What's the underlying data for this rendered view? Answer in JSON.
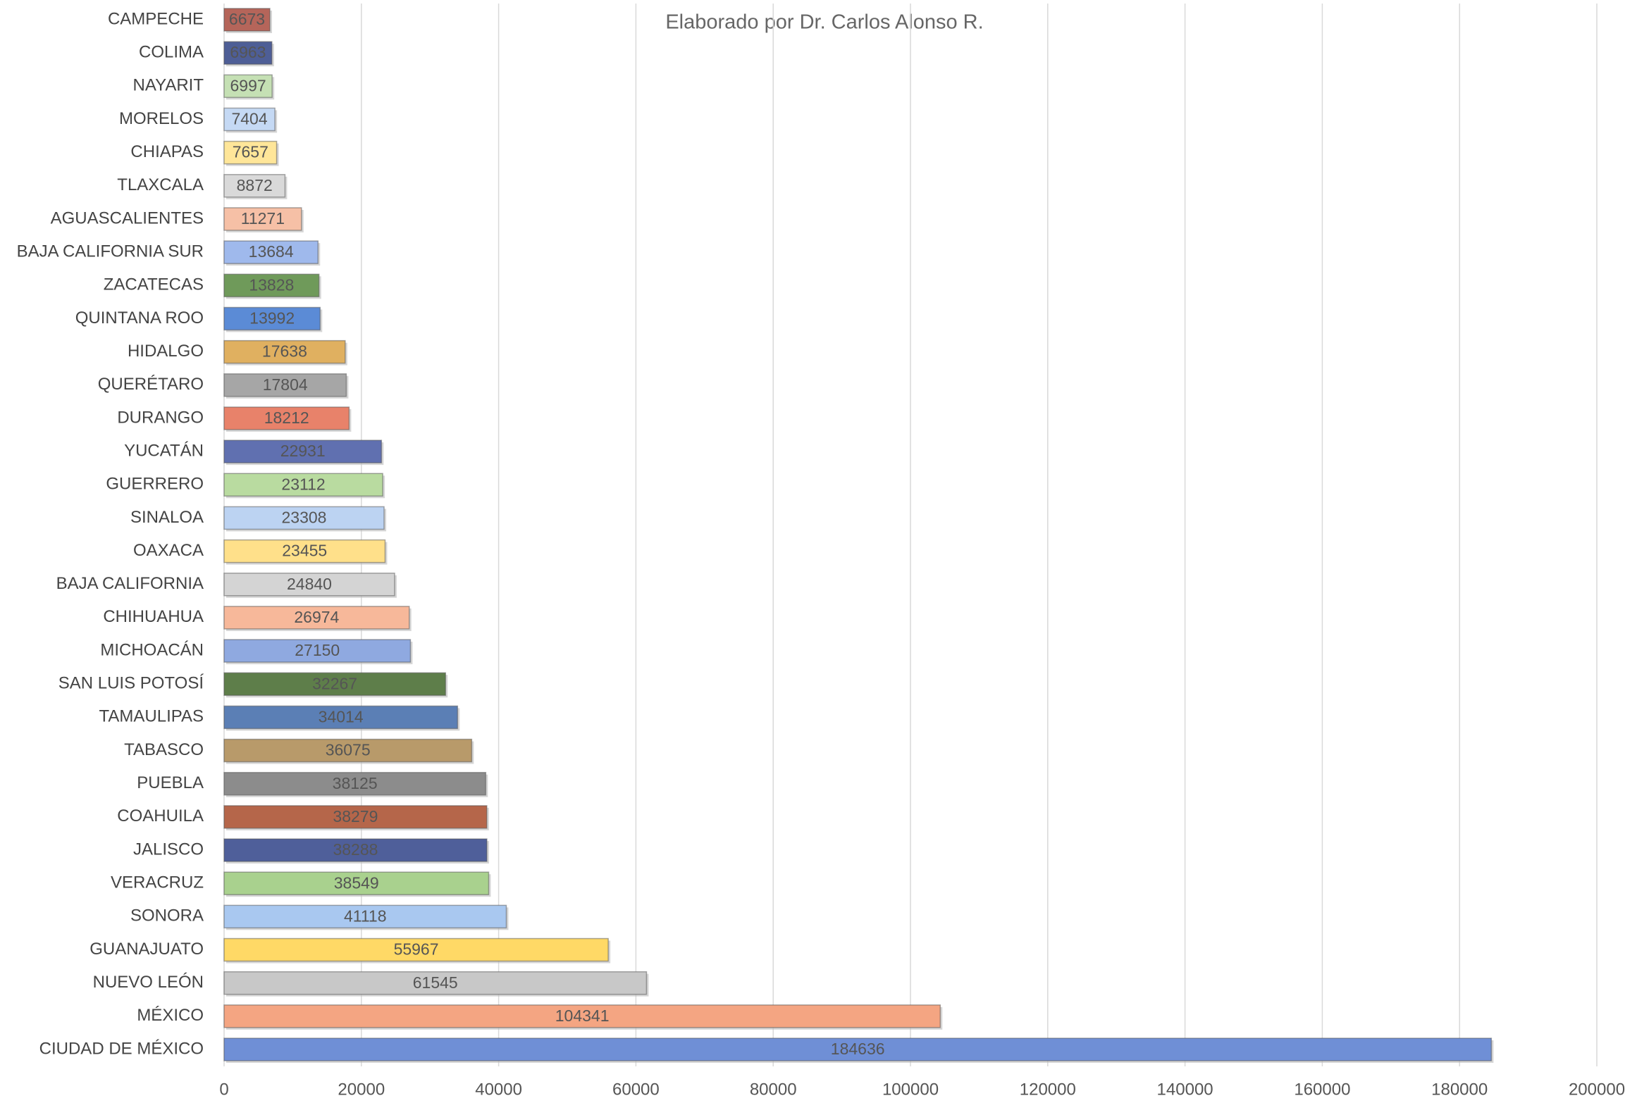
{
  "chart_data": {
    "type": "bar",
    "orientation": "horizontal",
    "subtitle": "Elaborado por Dr. Carlos Alonso R.",
    "categories": [
      "CAMPECHE",
      "COLIMA",
      "NAYARIT",
      "MORELOS",
      "CHIAPAS",
      "TLAXCALA",
      "AGUASCALIENTES",
      "BAJA CALIFORNIA SUR",
      "ZACATECAS",
      "QUINTANA ROO",
      "HIDALGO",
      "QUERÉTARO",
      "DURANGO",
      "YUCATÁN",
      "GUERRERO",
      "SINALOA",
      "OAXACA",
      "BAJA CALIFORNIA",
      "CHIHUAHUA",
      "MICHOACÁN",
      "SAN LUIS POTOSÍ",
      "TAMAULIPAS",
      "TABASCO",
      "PUEBLA",
      "COAHUILA",
      "JALISCO",
      "VERACRUZ",
      "SONORA",
      "GUANAJUATO",
      "NUEVO LEÓN",
      "MÉXICO",
      "CIUDAD DE MÉXICO"
    ],
    "values": [
      6673,
      6963,
      6997,
      7404,
      7657,
      8872,
      11271,
      13684,
      13828,
      13992,
      17638,
      17804,
      18212,
      22931,
      23112,
      23308,
      23455,
      24840,
      26974,
      27150,
      32267,
      34014,
      36075,
      38125,
      38279,
      38288,
      38549,
      41118,
      55967,
      61545,
      104341,
      184636
    ],
    "colors": [
      "#b5655a",
      "#4e5e96",
      "#c5e0b4",
      "#c5d9f4",
      "#ffe699",
      "#d9d9d9",
      "#f6c0a6",
      "#9fb9ec",
      "#6f9a5a",
      "#5b8bd6",
      "#e0b060",
      "#a6a6a6",
      "#e8826a",
      "#6070b0",
      "#b9dba0",
      "#bcd3f2",
      "#ffe08a",
      "#d4d4d4",
      "#f7b89a",
      "#8fa9e0",
      "#5e7e4a",
      "#5b7fb5",
      "#b89a6a",
      "#8c8c8c",
      "#b5664a",
      "#4f5f9a",
      "#a9d18e",
      "#a9c8f0",
      "#ffd966",
      "#c8c8c8",
      "#f4a582",
      "#6f8fd6"
    ],
    "xlim": [
      0,
      200000
    ],
    "xticks": [
      0,
      20000,
      40000,
      60000,
      80000,
      100000,
      120000,
      140000,
      160000,
      180000,
      200000
    ],
    "grid": true
  }
}
